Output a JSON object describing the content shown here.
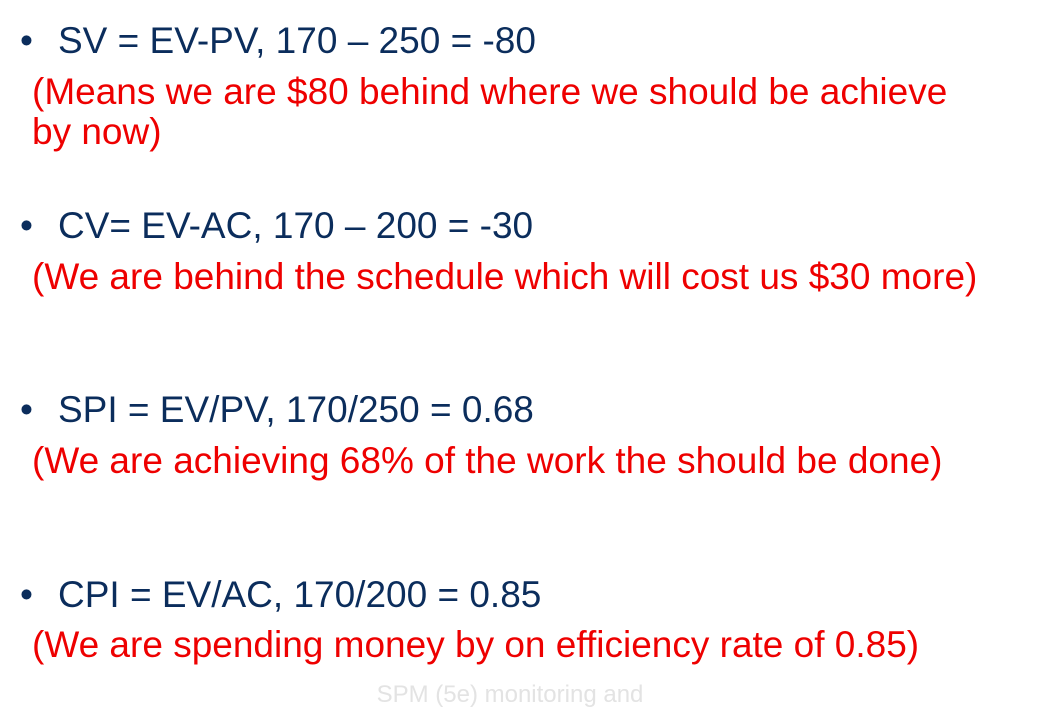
{
  "colors": {
    "formula": "#0b2d5c",
    "note": "#ee0000",
    "footer": "#e3e3e3",
    "background": "#ffffff"
  },
  "bullet_glyph": "•",
  "items": [
    {
      "formula": "SV = EV-PV, 170 – 250 = -80",
      "note": "(Means we are $80 behind where we should be achieve by now)"
    },
    {
      "formula": "CV= EV-AC, 170 – 200 = -30",
      "note": "(We are behind the schedule which will cost us $30 more)"
    },
    {
      "formula": "SPI = EV/PV, 170/250 = 0.68",
      "note": "(We are achieving  68% of the work the should be done)"
    },
    {
      "formula": "CPI = EV/AC, 170/200 = 0.85",
      "note": "(We are spending money by  on efficiency rate of 0.85)"
    }
  ],
  "footer": "SPM (5e) monitoring and"
}
